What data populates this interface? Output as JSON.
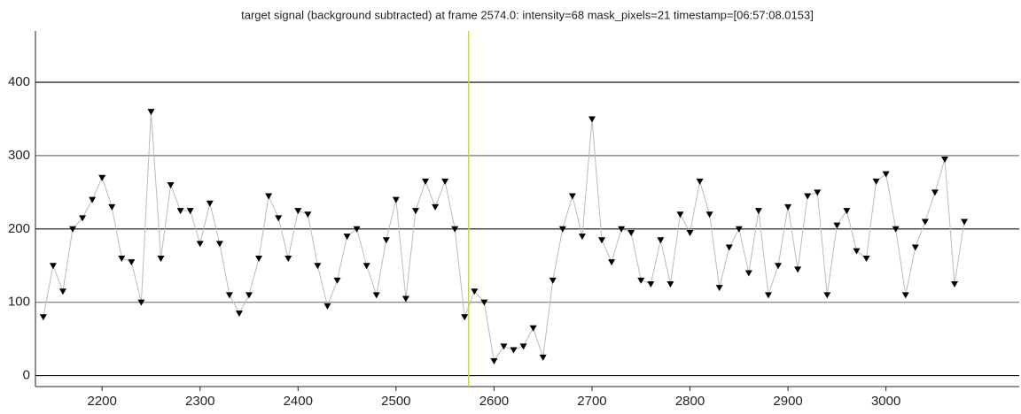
{
  "chart_data": {
    "type": "line",
    "title": "target signal (background subtracted) at frame 2574.0: intensity=68 mask_pixels=21 timestamp=[06:57:08.0153]",
    "x": [
      2140,
      2150,
      2160,
      2170,
      2180,
      2190,
      2200,
      2210,
      2220,
      2230,
      2240,
      2250,
      2260,
      2270,
      2280,
      2290,
      2300,
      2310,
      2320,
      2330,
      2340,
      2350,
      2360,
      2370,
      2380,
      2390,
      2400,
      2410,
      2420,
      2430,
      2440,
      2450,
      2460,
      2470,
      2480,
      2490,
      2500,
      2510,
      2520,
      2530,
      2540,
      2550,
      2560,
      2570,
      2580,
      2590,
      2600,
      2610,
      2620,
      2630,
      2640,
      2650,
      2660,
      2670,
      2680,
      2690,
      2700,
      2710,
      2720,
      2730,
      2740,
      2750,
      2760,
      2770,
      2780,
      2790,
      2800,
      2810,
      2820,
      2830,
      2840,
      2850,
      2860,
      2870,
      2880,
      2890,
      2900,
      2910,
      2920,
      2930,
      2940,
      2950,
      2960,
      2970,
      2980,
      2990,
      3000,
      3010,
      3020,
      3030,
      3040,
      3050,
      3060,
      3070,
      3080
    ],
    "values": [
      80,
      150,
      115,
      200,
      215,
      240,
      270,
      230,
      160,
      155,
      100,
      360,
      160,
      260,
      225,
      225,
      180,
      235,
      180,
      110,
      85,
      110,
      160,
      245,
      215,
      160,
      225,
      220,
      150,
      95,
      130,
      190,
      200,
      150,
      110,
      185,
      240,
      105,
      225,
      265,
      230,
      265,
      200,
      80,
      115,
      100,
      20,
      40,
      35,
      40,
      65,
      25,
      130,
      200,
      245,
      190,
      350,
      185,
      155,
      200,
      195,
      130,
      125,
      185,
      125,
      220,
      195,
      265,
      220,
      120,
      175,
      200,
      140,
      225,
      110,
      150,
      230,
      145,
      245,
      250,
      110,
      205,
      225,
      170,
      160,
      265,
      275,
      200,
      110,
      175,
      210,
      250,
      295,
      125,
      210
    ],
    "color": "#000000",
    "line_color": "#bbbbbb",
    "cursor_x": 2574,
    "cursor_color": "#c8d44a",
    "xlim": [
      2132,
      3136
    ],
    "ylim": [
      -15,
      470
    ],
    "xticks": [
      2200,
      2300,
      2400,
      2500,
      2600,
      2700,
      2800,
      2900,
      3000
    ],
    "yticks": [
      0,
      100,
      200,
      300,
      400
    ],
    "grid": true
  }
}
